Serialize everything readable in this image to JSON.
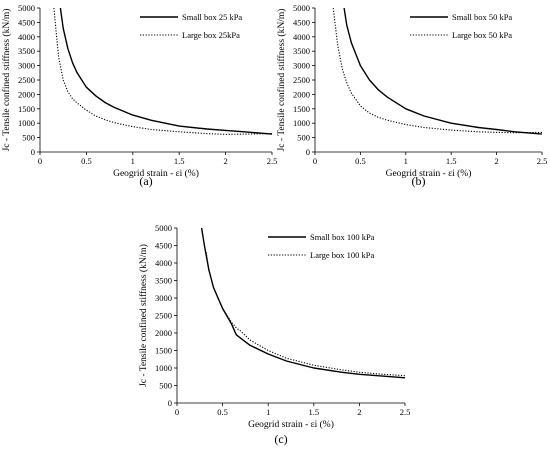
{
  "chart_data": [
    {
      "panel": "(a)",
      "type": "line",
      "xlabel": "Geogrid strain - εi (%)",
      "ylabel": "Jc - Tensile confined stiffness (kN/m)",
      "xlim": [
        0,
        2.5
      ],
      "ylim": [
        0,
        5000
      ],
      "xticks": [
        0,
        0.5,
        1,
        1.5,
        2,
        2.5
      ],
      "yticks": [
        0,
        500,
        1000,
        1500,
        2000,
        2500,
        3000,
        3500,
        4000,
        4500,
        5000
      ],
      "grid": false,
      "legend_position": "top-right",
      "series": [
        {
          "name": "Small box 25 kPa",
          "style": "solid",
          "x": [
            0.22,
            0.25,
            0.3,
            0.35,
            0.4,
            0.5,
            0.6,
            0.7,
            0.8,
            1.0,
            1.2,
            1.5,
            1.8,
            2.0,
            2.2,
            2.5
          ],
          "y": [
            5000,
            4300,
            3600,
            3100,
            2750,
            2250,
            1950,
            1720,
            1550,
            1280,
            1100,
            900,
            800,
            750,
            700,
            620
          ]
        },
        {
          "name": "Large box 25kPa",
          "style": "dotted",
          "x": [
            0.15,
            0.17,
            0.2,
            0.25,
            0.3,
            0.35,
            0.4,
            0.5,
            0.6,
            0.7,
            0.8,
            1.0,
            1.2,
            1.5,
            1.8,
            2.0,
            2.2,
            2.5
          ],
          "y": [
            5000,
            4300,
            3300,
            2500,
            2100,
            1850,
            1700,
            1450,
            1250,
            1120,
            1020,
            880,
            780,
            700,
            640,
            610,
            620,
            640
          ]
        }
      ]
    },
    {
      "panel": "(b)",
      "type": "line",
      "xlabel": "Geogrid strain - εi (%)",
      "ylabel": "Jc - Tensile confined stiffness (kN/m)",
      "xlim": [
        0,
        2.5
      ],
      "ylim": [
        0,
        5000
      ],
      "xticks": [
        0,
        0.5,
        1,
        1.5,
        2,
        2.5
      ],
      "yticks": [
        0,
        500,
        1000,
        1500,
        2000,
        2500,
        3000,
        3500,
        4000,
        4500,
        5000
      ],
      "grid": false,
      "legend_position": "top-right",
      "series": [
        {
          "name": "Small box 50 kPa",
          "style": "solid",
          "x": [
            0.32,
            0.35,
            0.4,
            0.5,
            0.6,
            0.7,
            0.8,
            1.0,
            1.2,
            1.5,
            1.8,
            2.0,
            2.2,
            2.5
          ],
          "y": [
            5000,
            4400,
            3800,
            3000,
            2500,
            2150,
            1900,
            1500,
            1250,
            1000,
            850,
            780,
            700,
            620
          ]
        },
        {
          "name": "Large box 50 kPa",
          "style": "dotted",
          "x": [
            0.2,
            0.25,
            0.3,
            0.35,
            0.4,
            0.5,
            0.6,
            0.7,
            0.8,
            1.0,
            1.2,
            1.5,
            1.8,
            2.0,
            2.2,
            2.5
          ],
          "y": [
            5000,
            3700,
            2900,
            2400,
            2050,
            1600,
            1350,
            1200,
            1100,
            950,
            850,
            760,
            700,
            680,
            670,
            680
          ]
        }
      ]
    },
    {
      "panel": "(c)",
      "type": "line",
      "xlabel": "Geogrid strain - εi (%)",
      "ylabel": "Jc - Tensile confined stiffness (kN/m)",
      "xlim": [
        0,
        2.5
      ],
      "ylim": [
        0,
        5000
      ],
      "xticks": [
        0,
        0.5,
        1,
        1.5,
        2,
        2.5
      ],
      "yticks": [
        0,
        500,
        1000,
        1500,
        2000,
        2500,
        3000,
        3500,
        4000,
        4500,
        5000
      ],
      "grid": false,
      "legend_position": "top-right",
      "series": [
        {
          "name": "Small box 100 kPa",
          "style": "solid",
          "x": [
            0.27,
            0.3,
            0.35,
            0.4,
            0.5,
            0.6,
            0.65,
            0.7,
            0.8,
            1.0,
            1.2,
            1.5,
            1.8,
            2.0,
            2.2,
            2.5
          ],
          "y": [
            5000,
            4500,
            3800,
            3300,
            2700,
            2250,
            1950,
            1850,
            1650,
            1400,
            1200,
            1000,
            880,
            820,
            780,
            720
          ]
        },
        {
          "name": "Large box 100 kPa",
          "style": "dotted",
          "x": [
            0.32,
            0.35,
            0.4,
            0.5,
            0.6,
            0.65,
            0.7,
            0.8,
            1.0,
            1.2,
            1.5,
            1.8,
            2.0,
            2.2,
            2.5
          ],
          "y": [
            4300,
            3800,
            3300,
            2700,
            2300,
            2150,
            2050,
            1800,
            1500,
            1280,
            1080,
            950,
            880,
            830,
            780
          ]
        }
      ]
    }
  ]
}
